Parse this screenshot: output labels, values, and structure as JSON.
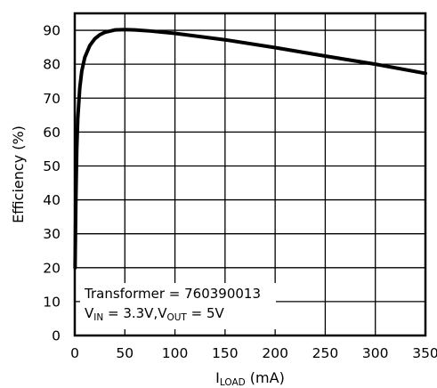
{
  "chart_data": {
    "type": "line",
    "title": "",
    "xlabel_main": "I",
    "xlabel_sub": "LOAD",
    "xlabel_unit": " (mA)",
    "ylabel": "Efficiency (%)",
    "xlim": [
      0,
      350
    ],
    "ylim": [
      0,
      95
    ],
    "xticks": [
      "0",
      "50",
      "100",
      "150",
      "200",
      "250",
      "300",
      "350"
    ],
    "yticks": [
      "0",
      "10",
      "20",
      "30",
      "40",
      "50",
      "60",
      "70",
      "80",
      "90"
    ],
    "grid": true,
    "series": [
      {
        "name": "",
        "x": [
          0.3,
          1,
          2,
          3,
          5,
          7,
          10,
          15,
          20,
          25,
          30,
          40,
          50,
          60,
          75,
          100,
          150,
          200,
          250,
          300,
          350
        ],
        "y": [
          20,
          38,
          55,
          64,
          73,
          78,
          82,
          85.5,
          87.5,
          88.7,
          89.4,
          90.1,
          90.2,
          90.1,
          89.8,
          89.1,
          87.2,
          84.9,
          82.4,
          80.0,
          77.3
        ]
      }
    ],
    "annotation": {
      "line1": "Transformer = 760390013",
      "line2_v1": "V",
      "line2_v1_sub": "IN",
      "line2_eq1": " = 3.3V,V",
      "line2_v2_sub": "OUT",
      "line2_eq2": " = 5V"
    }
  }
}
